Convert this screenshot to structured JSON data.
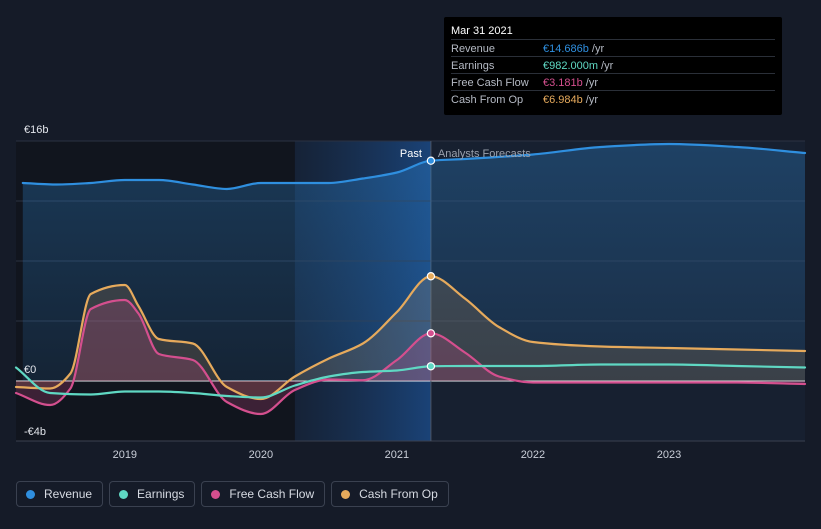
{
  "chart_data": {
    "type": "line",
    "currency": "€",
    "y_axis": {
      "ylim": [
        -4,
        16
      ],
      "tick_labels": [
        "€16b",
        "€0",
        "-€4b"
      ]
    },
    "x_axis": {
      "xlim": [
        2018.2,
        2024.0
      ],
      "ticks": [
        2019,
        2020,
        2021,
        2022,
        2023
      ],
      "tick_labels": [
        "2019",
        "2020",
        "2021",
        "2022",
        "2023"
      ]
    },
    "divider": {
      "x": 2021.25,
      "past_label": "Past",
      "forecast_label": "Analysts Forecasts"
    },
    "series": [
      {
        "name": "Revenue",
        "color": "#2f8fdf",
        "fill": true,
        "x": [
          2018.25,
          2018.5,
          2018.75,
          2019.0,
          2019.25,
          2019.5,
          2019.75,
          2020.0,
          2020.25,
          2020.5,
          2020.75,
          2021.0,
          2021.25,
          2021.5,
          2022.0,
          2022.5,
          2023.0,
          2023.5,
          2024.0
        ],
        "y": [
          13.2,
          13.1,
          13.2,
          13.4,
          13.4,
          13.1,
          12.8,
          13.2,
          13.2,
          13.2,
          13.5,
          13.9,
          14.686,
          14.8,
          15.1,
          15.6,
          15.8,
          15.6,
          15.2
        ]
      },
      {
        "name": "Earnings",
        "color": "#5fd8c3",
        "fill": false,
        "x": [
          2018.2,
          2018.45,
          2018.75,
          2019.0,
          2019.25,
          2019.5,
          2019.75,
          2020.0,
          2020.25,
          2020.5,
          2020.75,
          2021.0,
          2021.25,
          2021.5,
          2022.0,
          2022.5,
          2023.0,
          2023.5,
          2024.0
        ],
        "y": [
          0.9,
          -0.8,
          -0.9,
          -0.7,
          -0.7,
          -0.8,
          -1.0,
          -1.1,
          -0.3,
          0.3,
          0.6,
          0.7,
          0.982,
          1.0,
          1.0,
          1.1,
          1.1,
          1.0,
          0.9
        ]
      },
      {
        "name": "Free Cash Flow",
        "color": "#d44f8e",
        "fill": true,
        "x": [
          2018.2,
          2018.45,
          2018.6,
          2018.75,
          2019.0,
          2019.1,
          2019.25,
          2019.5,
          2019.75,
          2020.0,
          2020.25,
          2020.5,
          2020.75,
          2021.0,
          2021.25,
          2021.5,
          2021.75,
          2022.0,
          2022.5,
          2023.0,
          2023.5,
          2024.0
        ],
        "y": [
          -0.8,
          -1.6,
          -0.5,
          4.8,
          5.4,
          4.5,
          1.8,
          1.4,
          -1.4,
          -2.2,
          -0.6,
          0.1,
          0.05,
          1.4,
          3.181,
          1.9,
          0.3,
          -0.1,
          -0.1,
          -0.1,
          -0.1,
          -0.2
        ]
      },
      {
        "name": "Cash From Op",
        "color": "#e6aa5c",
        "fill": true,
        "x": [
          2018.2,
          2018.45,
          2018.6,
          2018.75,
          2019.0,
          2019.1,
          2019.25,
          2019.5,
          2019.75,
          2020.0,
          2020.25,
          2020.5,
          2020.75,
          2021.0,
          2021.25,
          2021.5,
          2021.75,
          2022.0,
          2022.5,
          2023.0,
          2023.5,
          2024.0
        ],
        "y": [
          -0.4,
          -0.5,
          0.5,
          5.8,
          6.4,
          5.0,
          2.8,
          2.5,
          -0.4,
          -1.2,
          0.3,
          1.5,
          2.5,
          4.6,
          6.984,
          5.5,
          3.6,
          2.6,
          2.3,
          2.2,
          2.1,
          2.0
        ]
      }
    ],
    "tooltip": {
      "date": "Mar 31 2021",
      "x": 2021.25,
      "rows": [
        {
          "label": "Revenue",
          "value": "€14.686b",
          "unit": "/yr",
          "color": "#2f8fdf"
        },
        {
          "label": "Earnings",
          "value": "€982.000m",
          "unit": "/yr",
          "color": "#5fd8c3"
        },
        {
          "label": "Free Cash Flow",
          "value": "€3.181b",
          "unit": "/yr",
          "color": "#d44f8e"
        },
        {
          "label": "Cash From Op",
          "value": "€6.984b",
          "unit": "/yr",
          "color": "#e6aa5c"
        }
      ]
    },
    "legend": [
      {
        "label": "Revenue",
        "color": "#2f8fdf"
      },
      {
        "label": "Earnings",
        "color": "#5fd8c3"
      },
      {
        "label": "Free Cash Flow",
        "color": "#d44f8e"
      },
      {
        "label": "Cash From Op",
        "color": "#e6aa5c"
      }
    ]
  }
}
